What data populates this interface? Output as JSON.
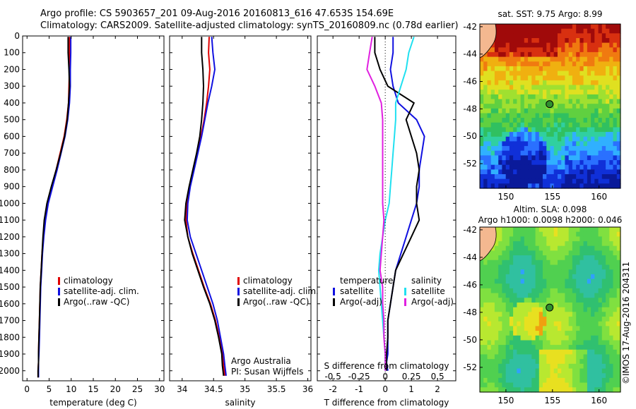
{
  "header": {
    "line1": "Argo profile: CS 5903657_201 09-Aug-2016 20160813_616 47.653S 154.69E",
    "line2": "Climatology: CARS2009. Satellite-adjusted climatology: synTS_20160809.nc (0.78d earlier)"
  },
  "credits": {
    "institution": "Argo Australia",
    "pi": "PI: Susan Wijffels",
    "imos": "©IMOS 17-Aug-2016 204311"
  },
  "colors": {
    "climatology": "#e00000",
    "satellite": "#1010e0",
    "argo": "#000000",
    "sal_satellite": "#20e0f0",
    "sal_argo": "#e020e0"
  },
  "depth_axis": {
    "ticks": [
      0,
      100,
      200,
      300,
      400,
      500,
      600,
      700,
      800,
      900,
      1000,
      1100,
      1200,
      1300,
      1400,
      1500,
      1600,
      1700,
      1800,
      1900,
      2000
    ],
    "range": [
      0,
      2060
    ]
  },
  "chart_data": [
    {
      "type": "line",
      "id": "temperature",
      "xlabel": "temperature (deg C)",
      "xlim": [
        -1,
        31
      ],
      "xticks": [
        0,
        5,
        10,
        15,
        20,
        25,
        30
      ],
      "legend": [
        "climatology",
        "satellite-adj. clim.",
        "Argo(..raw -QC)"
      ],
      "series": [
        {
          "name": "climatology",
          "color_key": "climatology",
          "x": [
            9.6,
            9.6,
            9.6,
            9.5,
            9.4,
            9.0,
            8.4,
            7.5,
            6.6,
            5.6,
            4.6,
            4.0,
            3.7,
            3.4,
            3.2,
            3.0,
            2.9,
            2.8,
            2.7,
            2.6,
            2.6,
            2.5,
            2.5
          ],
          "y": [
            5,
            100,
            200,
            300,
            400,
            500,
            600,
            700,
            800,
            900,
            1000,
            1100,
            1200,
            1300,
            1400,
            1500,
            1600,
            1700,
            1800,
            1900,
            1950,
            2000,
            2040
          ]
        },
        {
          "name": "satellite-adj. clim.",
          "color_key": "satellite",
          "x": [
            9.9,
            9.9,
            9.8,
            9.8,
            9.6,
            9.2,
            8.6,
            7.7,
            6.8,
            5.8,
            4.8,
            4.2,
            3.8,
            3.5,
            3.3,
            3.1,
            3.0,
            2.9,
            2.8,
            2.7,
            2.6,
            2.6,
            2.6
          ],
          "y": [
            5,
            100,
            200,
            300,
            400,
            500,
            600,
            700,
            800,
            900,
            1000,
            1100,
            1200,
            1300,
            1400,
            1500,
            1600,
            1700,
            1800,
            1900,
            1950,
            2000,
            2040
          ]
        },
        {
          "name": "Argo(..raw -QC)",
          "color_key": "argo",
          "x": [
            9.3,
            9.3,
            9.5,
            9.6,
            9.4,
            9.1,
            8.5,
            7.6,
            6.6,
            5.5,
            4.5,
            3.9,
            3.6,
            3.4,
            3.2,
            3.0,
            2.9,
            2.8,
            2.7,
            2.6,
            2.6,
            2.5,
            2.5
          ],
          "y": [
            5,
            100,
            200,
            300,
            400,
            500,
            600,
            700,
            800,
            900,
            1000,
            1100,
            1200,
            1300,
            1400,
            1500,
            1600,
            1700,
            1800,
            1900,
            1950,
            2000,
            2040
          ]
        }
      ]
    },
    {
      "type": "line",
      "id": "salinity",
      "xlabel": "salinity",
      "xlim": [
        33.8,
        36.05
      ],
      "xticks": [
        34,
        34.5,
        35,
        35.5,
        36
      ],
      "legend": [
        "climatology",
        "satellite-adj. clim.",
        "Argo(..raw -QC)"
      ],
      "series": [
        {
          "name": "climatology",
          "color_key": "climatology",
          "x": [
            34.43,
            34.42,
            34.44,
            34.42,
            34.39,
            34.35,
            34.3,
            34.24,
            34.18,
            34.12,
            34.08,
            34.06,
            34.09,
            34.17,
            34.26,
            34.35,
            34.45,
            34.53,
            34.59,
            34.64,
            34.66,
            34.68
          ],
          "y": [
            5,
            100,
            200,
            300,
            400,
            500,
            600,
            700,
            800,
            900,
            1000,
            1100,
            1200,
            1300,
            1400,
            1500,
            1600,
            1700,
            1800,
            1900,
            1970,
            2030
          ]
        },
        {
          "name": "satellite-adj. clim.",
          "color_key": "satellite",
          "x": [
            34.47,
            34.49,
            34.52,
            34.47,
            34.41,
            34.36,
            34.31,
            34.25,
            34.19,
            34.13,
            34.09,
            34.08,
            34.13,
            34.22,
            34.31,
            34.4,
            34.49,
            34.56,
            34.61,
            34.66,
            34.68,
            34.7
          ],
          "y": [
            5,
            100,
            200,
            300,
            400,
            500,
            600,
            700,
            800,
            900,
            1000,
            1100,
            1200,
            1300,
            1400,
            1500,
            1600,
            1700,
            1800,
            1900,
            1970,
            2030
          ]
        },
        {
          "name": "Argo(..raw -QC)",
          "color_key": "argo",
          "x": [
            34.31,
            34.31,
            34.33,
            34.34,
            34.33,
            34.31,
            34.28,
            34.23,
            34.17,
            34.11,
            34.06,
            34.04,
            34.09,
            34.16,
            34.25,
            34.34,
            34.44,
            34.52,
            34.58,
            34.63,
            34.64,
            34.66
          ],
          "y": [
            5,
            100,
            200,
            300,
            400,
            500,
            600,
            700,
            800,
            900,
            1000,
            1100,
            1200,
            1300,
            1400,
            1500,
            1600,
            1700,
            1800,
            1900,
            1970,
            2030
          ]
        }
      ]
    },
    {
      "type": "line",
      "id": "differences",
      "xlabel": "T difference from climatology",
      "xlabel2": "S difference from climatology",
      "xlim": [
        -2.6,
        2.7
      ],
      "xticks_T": [
        -2,
        -1,
        0,
        1,
        2
      ],
      "xticks_S": [
        -0.5,
        -0.25,
        0,
        0.25,
        0.5
      ],
      "legend_temperature_title": "temperature",
      "legend_salinity_title": "salinity",
      "legend_temperature": [
        "satellite",
        "Argo(-adj)"
      ],
      "legend_salinity": [
        "satellite",
        "Argo(-adj)"
      ],
      "series": [
        {
          "name": "temperature satellite",
          "color_key": "satellite",
          "x": [
            0.3,
            0.3,
            0.2,
            0.3,
            0.5,
            1.2,
            1.5,
            1.4,
            1.3,
            1.3,
            1.2,
            1.0,
            0.8,
            0.6,
            0.4,
            0.3,
            0.2,
            0.1,
            0.1,
            0.1,
            0.05,
            0.1
          ],
          "y": [
            5,
            100,
            200,
            300,
            400,
            500,
            600,
            700,
            800,
            900,
            1000,
            1100,
            1200,
            1300,
            1400,
            1500,
            1600,
            1700,
            1800,
            1900,
            1950,
            2000
          ]
        },
        {
          "name": "temperature Argo(-adj)",
          "color_key": "argo",
          "x": [
            -0.4,
            -0.4,
            -0.2,
            0.1,
            1.1,
            0.8,
            1.0,
            1.2,
            1.3,
            1.2,
            1.2,
            1.3,
            1.0,
            0.7,
            0.4,
            0.3,
            0.2,
            0.1,
            0.1,
            0.05,
            0.05,
            0.05
          ],
          "y": [
            5,
            100,
            200,
            300,
            400,
            500,
            600,
            700,
            800,
            900,
            1000,
            1100,
            1200,
            1300,
            1400,
            1500,
            1600,
            1700,
            1800,
            1900,
            1950,
            2000
          ]
        },
        {
          "name": "salinity satellite",
          "color_key": "sal_satellite",
          "x": [
            1.1,
            0.9,
            0.8,
            0.6,
            0.4,
            0.4,
            0.35,
            0.3,
            0.25,
            0.2,
            0.15,
            0.0,
            -0.1,
            -0.2,
            -0.25,
            -0.2,
            -0.15,
            -0.1,
            -0.05,
            0.0,
            0.0,
            0.0
          ],
          "y": [
            5,
            100,
            200,
            300,
            400,
            500,
            600,
            700,
            800,
            900,
            1000,
            1100,
            1200,
            1300,
            1400,
            1500,
            1600,
            1700,
            1800,
            1900,
            1950,
            2000
          ]
        },
        {
          "name": "salinity Argo(-adj)",
          "color_key": "sal_argo",
          "x": [
            -0.5,
            -0.6,
            -0.7,
            -0.4,
            -0.15,
            -0.1,
            -0.1,
            -0.1,
            -0.1,
            -0.1,
            -0.1,
            -0.05,
            -0.1,
            -0.15,
            -0.2,
            -0.1,
            -0.1,
            -0.05,
            -0.05,
            0.0,
            0.0,
            0.0
          ],
          "y": [
            5,
            100,
            200,
            300,
            400,
            500,
            600,
            700,
            800,
            900,
            1000,
            1100,
            1200,
            1300,
            1400,
            1500,
            1600,
            1700,
            1800,
            1900,
            1950,
            2000
          ]
        }
      ]
    },
    {
      "type": "heatmap",
      "id": "sst_map",
      "title": "sat. SST: 9.75 Argo: 8.99",
      "xticks": [
        150,
        155,
        160
      ],
      "yticks": [
        -42,
        -44,
        -46,
        -48,
        -50,
        -52
      ],
      "xlim": [
        147.2,
        162.3
      ],
      "ylim": [
        -53.8,
        -41.8
      ],
      "marker": {
        "lon": 154.69,
        "lat": -47.653
      }
    },
    {
      "type": "heatmap",
      "id": "sla_map",
      "title": "Altim. SLA: 0.098",
      "subtitle": "Argo h1000: 0.0098 h2000: 0.046",
      "xticks": [
        150,
        155,
        160
      ],
      "yticks": [
        -42,
        -44,
        -46,
        -48,
        -50,
        -52
      ],
      "xlim": [
        147.2,
        162.3
      ],
      "ylim": [
        -53.8,
        -41.8
      ],
      "marker": {
        "lon": 154.69,
        "lat": -47.653
      }
    }
  ]
}
